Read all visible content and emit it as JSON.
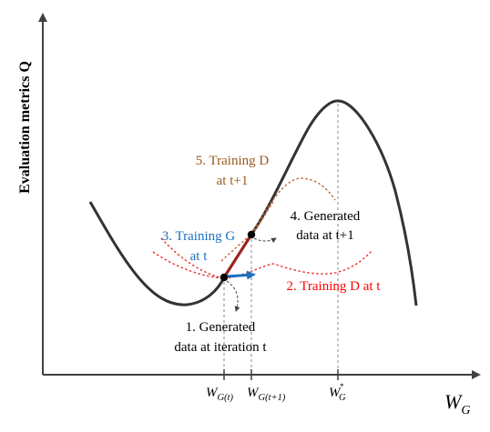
{
  "axes": {
    "y_label": "Evaluation metrics Q",
    "x_label_main": "W",
    "x_label_sub": "G",
    "ticks": [
      {
        "main": "W",
        "sub": "G(t)"
      },
      {
        "main": "W",
        "sub": "G(t+1)"
      },
      {
        "main": "W",
        "sub": "G",
        "sup": "*"
      }
    ]
  },
  "annotations": {
    "step1_line1": "1. Generated",
    "step1_line2": "data at iteration t",
    "step2": "2. Training D at t",
    "step3_line1": "3. Training G",
    "step3_line2": "at t",
    "step4_line1": "4. Generated",
    "step4_line2": "data at t+1",
    "step5_line1": "5. Training D",
    "step5_line2": "at t+1"
  },
  "colors": {
    "curve": "#333333",
    "axis": "#404040",
    "step2": "#ff0000",
    "step3": "#1a6fbf",
    "step5": "#9b5a1e",
    "segment": "#a0201e",
    "dashed_d_t": "#e8302a",
    "dashed_d_t1": "#b8653a",
    "black": "#000000"
  }
}
